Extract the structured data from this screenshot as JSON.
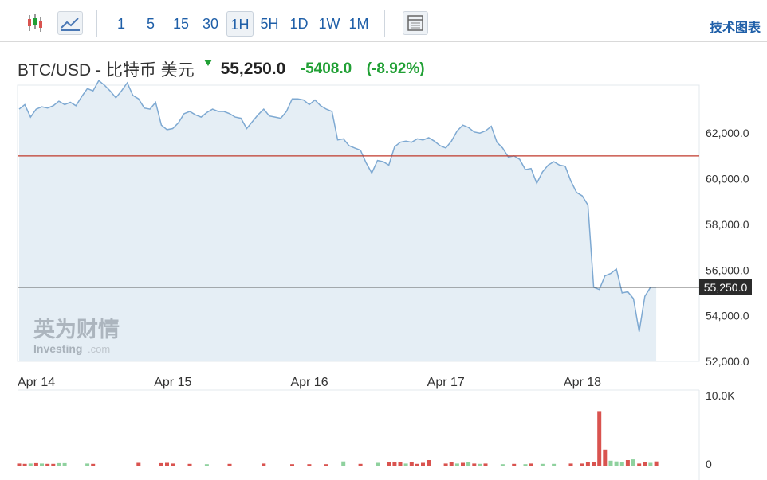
{
  "toolbar": {
    "chart_type_icons": [
      {
        "name": "candlestick-icon",
        "active": false
      },
      {
        "name": "line-chart-icon",
        "active": true
      }
    ],
    "timeframes": [
      "1",
      "5",
      "15",
      "30",
      "1H",
      "5H",
      "1D",
      "1W",
      "1M"
    ],
    "active_timeframe": "1H",
    "table_icon": "table-icon",
    "tech_chart_label": "技术图表"
  },
  "header": {
    "pair_label": "BTC/USD - 比特币 美元",
    "price": "55,250.0",
    "change": "-5408.0",
    "change_pct": "(-8.92%)",
    "direction_icon": "down-arrow-icon"
  },
  "watermark": {
    "cn": "英为财情",
    "en": "Investing",
    "suffix": ".com"
  },
  "colors": {
    "line": "#7ea9d2",
    "area": "#e5eef5",
    "ref_line": "#c0392b",
    "volume_up": "#8fd19e",
    "volume_down": "#d9534f",
    "accent": "#1f5fa8"
  },
  "chart_data": {
    "type": "area",
    "x_tick_labels": [
      "Apr 14",
      "Apr 15",
      "Apr 16",
      "Apr 17",
      "Apr 18"
    ],
    "y_tick_labels": [
      "62,000.0",
      "60,000.0",
      "58,000.0",
      "56,000.0",
      "54,000.0",
      "52,000.0"
    ],
    "y_ticks": [
      62000,
      60000,
      58000,
      56000,
      54000,
      52000
    ],
    "ylim": [
      52000,
      64100
    ],
    "x_unit": "hours from Apr 14 00:00",
    "xlim": [
      0,
      119
    ],
    "grid": false,
    "reference_line": 61000,
    "current_price": 55250,
    "current_price_label": "55,250.0",
    "series": [
      {
        "values": [
          [
            0,
            63050
          ],
          [
            1,
            63250
          ],
          [
            2,
            62700
          ],
          [
            3,
            63050
          ],
          [
            4,
            63150
          ],
          [
            5,
            63100
          ],
          [
            6,
            63200
          ],
          [
            7,
            63400
          ],
          [
            8,
            63250
          ],
          [
            9,
            63350
          ],
          [
            10,
            63200
          ],
          [
            11,
            63600
          ],
          [
            12,
            63950
          ],
          [
            13,
            63850
          ],
          [
            14,
            64300
          ],
          [
            15,
            64100
          ],
          [
            16,
            63850
          ],
          [
            17,
            63550
          ],
          [
            18,
            63850
          ],
          [
            19,
            64200
          ],
          [
            20,
            63650
          ],
          [
            21,
            63500
          ],
          [
            22,
            63100
          ],
          [
            23,
            63050
          ],
          [
            24,
            63350
          ],
          [
            25,
            62350
          ],
          [
            26,
            62150
          ],
          [
            27,
            62200
          ],
          [
            28,
            62450
          ],
          [
            29,
            62850
          ],
          [
            30,
            62950
          ],
          [
            31,
            62800
          ],
          [
            32,
            62700
          ],
          [
            33,
            62900
          ],
          [
            34,
            63050
          ],
          [
            35,
            62950
          ],
          [
            36,
            62950
          ],
          [
            37,
            62850
          ],
          [
            38,
            62700
          ],
          [
            39,
            62650
          ],
          [
            40,
            62200
          ],
          [
            41,
            62500
          ],
          [
            42,
            62800
          ],
          [
            43,
            63050
          ],
          [
            44,
            62750
          ],
          [
            45,
            62700
          ],
          [
            46,
            62650
          ],
          [
            47,
            62950
          ],
          [
            48,
            63500
          ],
          [
            49,
            63500
          ],
          [
            50,
            63450
          ],
          [
            51,
            63250
          ],
          [
            52,
            63450
          ],
          [
            53,
            63200
          ],
          [
            54,
            63050
          ],
          [
            55,
            62950
          ],
          [
            56,
            61700
          ],
          [
            57,
            61750
          ],
          [
            58,
            61450
          ],
          [
            59,
            61350
          ],
          [
            60,
            61250
          ],
          [
            61,
            60700
          ],
          [
            62,
            60250
          ],
          [
            63,
            60800
          ],
          [
            64,
            60750
          ],
          [
            65,
            60600
          ],
          [
            66,
            61400
          ],
          [
            67,
            61600
          ],
          [
            68,
            61650
          ],
          [
            69,
            61600
          ],
          [
            70,
            61750
          ],
          [
            71,
            61700
          ],
          [
            72,
            61800
          ],
          [
            73,
            61650
          ],
          [
            74,
            61450
          ],
          [
            75,
            61350
          ],
          [
            76,
            61650
          ],
          [
            77,
            62100
          ],
          [
            78,
            62350
          ],
          [
            79,
            62250
          ],
          [
            80,
            62050
          ],
          [
            81,
            62000
          ],
          [
            82,
            62100
          ],
          [
            83,
            62300
          ],
          [
            84,
            61600
          ],
          [
            85,
            61350
          ],
          [
            86,
            60950
          ],
          [
            87,
            61000
          ],
          [
            88,
            60850
          ],
          [
            89,
            60400
          ],
          [
            90,
            60450
          ],
          [
            91,
            59800
          ],
          [
            92,
            60300
          ],
          [
            93,
            60600
          ],
          [
            94,
            60750
          ],
          [
            95,
            60600
          ],
          [
            96,
            60550
          ],
          [
            97,
            59900
          ],
          [
            98,
            59400
          ],
          [
            99,
            59250
          ],
          [
            100,
            58850
          ],
          [
            101,
            55250
          ],
          [
            102,
            55150
          ],
          [
            103,
            55750
          ],
          [
            104,
            55850
          ],
          [
            105,
            56050
          ],
          [
            106,
            55000
          ],
          [
            107,
            55050
          ],
          [
            108,
            54750
          ],
          [
            109,
            53300
          ],
          [
            110,
            54850
          ],
          [
            111,
            55250
          ],
          [
            112,
            55250
          ]
        ]
      }
    ],
    "volume": {
      "y_tick_labels": [
        "10.0K",
        "0"
      ],
      "ylim": [
        0,
        10000
      ],
      "bars": [
        [
          0,
          300,
          "down"
        ],
        [
          1,
          250,
          "down"
        ],
        [
          2,
          300,
          "up"
        ],
        [
          3,
          350,
          "down"
        ],
        [
          4,
          300,
          "up"
        ],
        [
          5,
          250,
          "down"
        ],
        [
          6,
          250,
          "down"
        ],
        [
          7,
          350,
          "up"
        ],
        [
          8,
          350,
          "up"
        ],
        [
          12,
          300,
          "up"
        ],
        [
          13,
          250,
          "down"
        ],
        [
          21,
          400,
          "down"
        ],
        [
          25,
          350,
          "down"
        ],
        [
          26,
          400,
          "down"
        ],
        [
          27,
          300,
          "down"
        ],
        [
          30,
          250,
          "down"
        ],
        [
          33,
          200,
          "up"
        ],
        [
          37,
          250,
          "down"
        ],
        [
          43,
          300,
          "down"
        ],
        [
          48,
          200,
          "down"
        ],
        [
          51,
          200,
          "down"
        ],
        [
          54,
          200,
          "down"
        ],
        [
          57,
          600,
          "up"
        ],
        [
          60,
          250,
          "down"
        ],
        [
          63,
          400,
          "up"
        ],
        [
          65,
          450,
          "down"
        ],
        [
          66,
          500,
          "down"
        ],
        [
          67,
          550,
          "down"
        ],
        [
          68,
          300,
          "up"
        ],
        [
          69,
          500,
          "down"
        ],
        [
          70,
          250,
          "down"
        ],
        [
          71,
          400,
          "down"
        ],
        [
          72,
          800,
          "down"
        ],
        [
          75,
          300,
          "down"
        ],
        [
          76,
          450,
          "down"
        ],
        [
          77,
          300,
          "up"
        ],
        [
          78,
          400,
          "down"
        ],
        [
          79,
          500,
          "up"
        ],
        [
          80,
          300,
          "down"
        ],
        [
          81,
          250,
          "up"
        ],
        [
          82,
          300,
          "down"
        ],
        [
          85,
          200,
          "up"
        ],
        [
          87,
          250,
          "down"
        ],
        [
          89,
          200,
          "up"
        ],
        [
          90,
          300,
          "down"
        ],
        [
          92,
          250,
          "up"
        ],
        [
          94,
          250,
          "up"
        ],
        [
          97,
          300,
          "down"
        ],
        [
          99,
          300,
          "down"
        ],
        [
          100,
          500,
          "down"
        ],
        [
          101,
          550,
          "down"
        ],
        [
          102,
          7800,
          "down"
        ],
        [
          103,
          2300,
          "down"
        ],
        [
          104,
          700,
          "up"
        ],
        [
          105,
          600,
          "up"
        ],
        [
          106,
          550,
          "up"
        ],
        [
          107,
          800,
          "down"
        ],
        [
          108,
          900,
          "up"
        ],
        [
          109,
          300,
          "down"
        ],
        [
          110,
          450,
          "down"
        ],
        [
          111,
          400,
          "up"
        ],
        [
          112,
          600,
          "down"
        ]
      ]
    }
  }
}
